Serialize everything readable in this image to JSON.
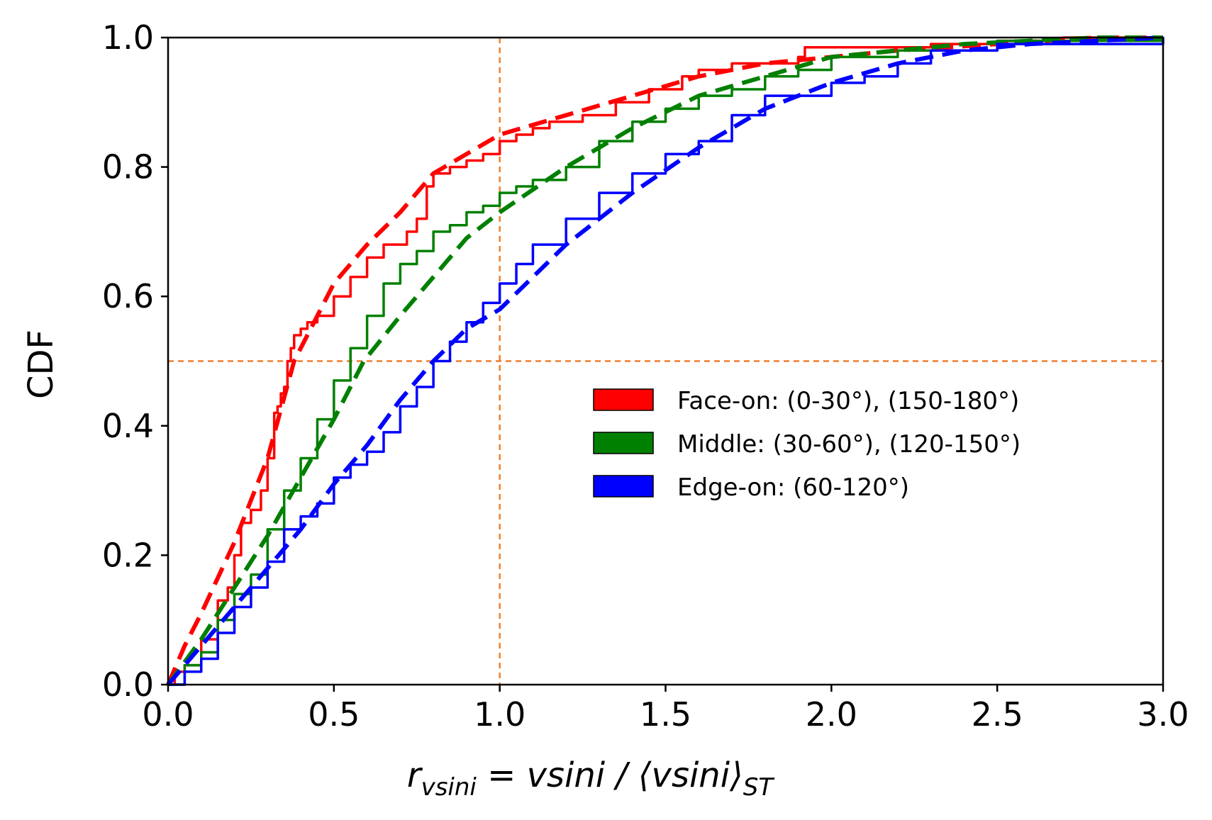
{
  "chart_data": {
    "type": "line",
    "title": "",
    "xlabel": "r_vsini = vsini / ⟨vsini⟩_ST",
    "xlabel_parts": {
      "r": "r",
      "r_sub": "vsini",
      "mid": " = vsini / ⟨vsini⟩",
      "st_sub": "ST"
    },
    "ylabel": "CDF",
    "xlim": [
      0.0,
      3.0
    ],
    "ylim": [
      0.0,
      1.0
    ],
    "xticks": [
      "0.0",
      "0.5",
      "1.0",
      "1.5",
      "2.0",
      "2.5",
      "3.0"
    ],
    "yticks": [
      "0.0",
      "0.2",
      "0.4",
      "0.6",
      "0.8",
      "1.0"
    ],
    "reference_lines": {
      "vertical_x": 1.0,
      "horizontal_y": 0.5,
      "color": "#f07f2e"
    },
    "legend": {
      "position": "center-right",
      "entries": [
        {
          "label": "Face-on: (0-30°), (150-180°)",
          "color": "#ff0000"
        },
        {
          "label": "Middle: (30-60°), (120-150°)",
          "color": "#008000"
        },
        {
          "label": "Edge-on: (60-120°)",
          "color": "#0000ff"
        }
      ]
    },
    "series": [
      {
        "name": "Face-on empirical CDF",
        "group": "Face-on",
        "style": "solid",
        "color": "#ff0000",
        "x": [
          0.0,
          0.02,
          0.05,
          0.1,
          0.15,
          0.18,
          0.2,
          0.22,
          0.25,
          0.28,
          0.3,
          0.32,
          0.33,
          0.34,
          0.35,
          0.36,
          0.37,
          0.38,
          0.4,
          0.42,
          0.45,
          0.5,
          0.55,
          0.6,
          0.65,
          0.7,
          0.72,
          0.75,
          0.78,
          0.8,
          0.85,
          0.9,
          0.95,
          1.0,
          1.05,
          1.1,
          1.15,
          1.25,
          1.35,
          1.45,
          1.55,
          1.6,
          1.7,
          1.8,
          1.9,
          1.92,
          2.1,
          2.3,
          2.5,
          2.7,
          3.0
        ],
        "y": [
          0.0,
          0.02,
          0.03,
          0.07,
          0.13,
          0.15,
          0.2,
          0.25,
          0.27,
          0.3,
          0.35,
          0.42,
          0.43,
          0.45,
          0.46,
          0.5,
          0.52,
          0.54,
          0.55,
          0.56,
          0.57,
          0.6,
          0.63,
          0.66,
          0.68,
          0.68,
          0.7,
          0.72,
          0.77,
          0.79,
          0.8,
          0.81,
          0.82,
          0.84,
          0.85,
          0.86,
          0.87,
          0.88,
          0.9,
          0.92,
          0.94,
          0.95,
          0.96,
          0.96,
          0.97,
          0.985,
          0.985,
          0.99,
          0.995,
          1.0,
          1.0
        ]
      },
      {
        "name": "Face-on model CDF",
        "group": "Face-on",
        "style": "dashed",
        "color": "#ff0000",
        "x": [
          0.0,
          0.05,
          0.1,
          0.2,
          0.3,
          0.38,
          0.45,
          0.5,
          0.6,
          0.7,
          0.8,
          0.9,
          1.0,
          1.2,
          1.4,
          1.6,
          1.8,
          2.0,
          2.2,
          2.5,
          2.8,
          3.0
        ],
        "y": [
          0.0,
          0.06,
          0.11,
          0.22,
          0.35,
          0.5,
          0.57,
          0.62,
          0.68,
          0.73,
          0.79,
          0.82,
          0.85,
          0.88,
          0.91,
          0.94,
          0.96,
          0.97,
          0.98,
          0.99,
          1.0,
          1.0
        ]
      },
      {
        "name": "Middle empirical CDF",
        "group": "Middle",
        "style": "solid",
        "color": "#008000",
        "x": [
          0.0,
          0.05,
          0.1,
          0.15,
          0.2,
          0.25,
          0.3,
          0.35,
          0.4,
          0.45,
          0.5,
          0.55,
          0.6,
          0.65,
          0.7,
          0.75,
          0.8,
          0.85,
          0.9,
          0.95,
          1.0,
          1.05,
          1.1,
          1.2,
          1.3,
          1.4,
          1.5,
          1.6,
          1.7,
          1.8,
          1.9,
          2.0,
          2.2,
          2.5,
          3.0
        ],
        "y": [
          0.0,
          0.03,
          0.05,
          0.1,
          0.14,
          0.17,
          0.24,
          0.3,
          0.35,
          0.41,
          0.47,
          0.52,
          0.57,
          0.62,
          0.65,
          0.67,
          0.7,
          0.71,
          0.73,
          0.74,
          0.76,
          0.77,
          0.78,
          0.8,
          0.84,
          0.87,
          0.89,
          0.91,
          0.92,
          0.94,
          0.95,
          0.97,
          0.98,
          0.995,
          1.0
        ]
      },
      {
        "name": "Middle model CDF",
        "group": "Middle",
        "style": "dashed",
        "color": "#008000",
        "x": [
          0.0,
          0.1,
          0.2,
          0.3,
          0.4,
          0.5,
          0.59,
          0.7,
          0.8,
          0.9,
          1.0,
          1.2,
          1.4,
          1.6,
          1.8,
          2.0,
          2.2,
          2.4,
          2.6,
          2.8,
          3.0
        ],
        "y": [
          0.0,
          0.07,
          0.15,
          0.23,
          0.32,
          0.41,
          0.5,
          0.57,
          0.63,
          0.69,
          0.73,
          0.8,
          0.86,
          0.91,
          0.94,
          0.97,
          0.98,
          0.99,
          0.995,
          1.0,
          1.0
        ]
      },
      {
        "name": "Edge-on empirical CDF",
        "group": "Edge-on",
        "style": "solid",
        "color": "#0000ff",
        "x": [
          0.0,
          0.05,
          0.1,
          0.15,
          0.2,
          0.25,
          0.3,
          0.35,
          0.4,
          0.45,
          0.5,
          0.55,
          0.6,
          0.65,
          0.7,
          0.75,
          0.8,
          0.85,
          0.9,
          0.95,
          1.0,
          1.05,
          1.1,
          1.2,
          1.3,
          1.4,
          1.5,
          1.6,
          1.7,
          1.8,
          1.9,
          2.0,
          2.1,
          2.2,
          2.3,
          2.5,
          3.0
        ],
        "y": [
          0.0,
          0.02,
          0.04,
          0.08,
          0.12,
          0.15,
          0.19,
          0.24,
          0.26,
          0.28,
          0.32,
          0.34,
          0.36,
          0.39,
          0.43,
          0.46,
          0.5,
          0.53,
          0.56,
          0.59,
          0.62,
          0.65,
          0.68,
          0.72,
          0.76,
          0.79,
          0.82,
          0.84,
          0.88,
          0.91,
          0.91,
          0.93,
          0.94,
          0.96,
          0.98,
          0.99,
          1.0
        ]
      },
      {
        "name": "Edge-on model CDF",
        "group": "Edge-on",
        "style": "dashed",
        "color": "#0000ff",
        "x": [
          0.0,
          0.1,
          0.2,
          0.3,
          0.4,
          0.5,
          0.6,
          0.7,
          0.8,
          0.9,
          1.0,
          1.2,
          1.4,
          1.6,
          1.8,
          2.0,
          2.2,
          2.4,
          2.6,
          2.8,
          3.0
        ],
        "y": [
          0.0,
          0.06,
          0.12,
          0.18,
          0.24,
          0.31,
          0.37,
          0.44,
          0.5,
          0.55,
          0.58,
          0.68,
          0.76,
          0.83,
          0.89,
          0.93,
          0.96,
          0.98,
          0.99,
          0.995,
          1.0
        ]
      }
    ]
  }
}
